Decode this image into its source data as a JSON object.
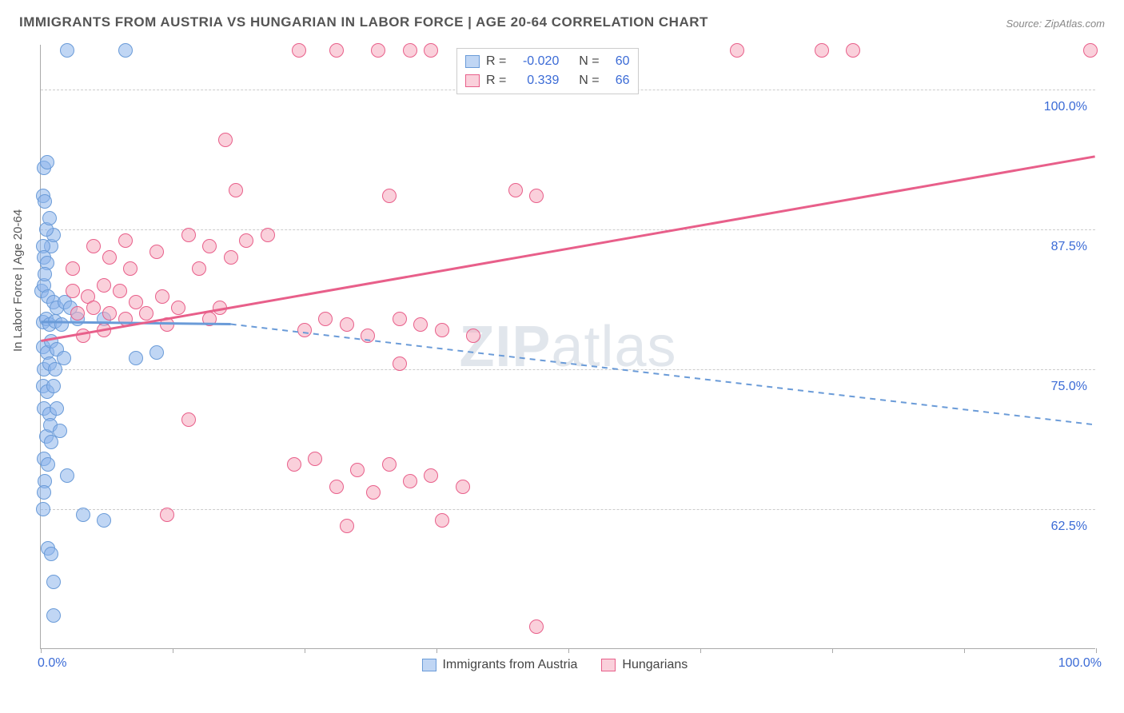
{
  "title": "IMMIGRANTS FROM AUSTRIA VS HUNGARIAN IN LABOR FORCE | AGE 20-64 CORRELATION CHART",
  "source": "Source: ZipAtlas.com",
  "watermark_bold": "ZIP",
  "watermark_rest": "atlas",
  "chart": {
    "type": "scatter",
    "xlim": [
      0,
      100
    ],
    "ylim": [
      50,
      104
    ],
    "ytick_values": [
      62.5,
      75.0,
      87.5,
      100.0
    ],
    "ytick_labels": [
      "62.5%",
      "75.0%",
      "87.5%",
      "100.0%"
    ],
    "xtick_positions": [
      0,
      12.5,
      25,
      37.5,
      50,
      62.5,
      75,
      87.5,
      100
    ],
    "xaxis_start_label": "0.0%",
    "xaxis_end_label": "100.0%",
    "ylabel": "In Labor Force | Age 20-64",
    "background_color": "#ffffff",
    "grid_color": "#cccccc",
    "series": [
      {
        "name": "Immigrants from Austria",
        "label": "Immigrants from Austria",
        "fill": "rgba(140,180,235,0.55)",
        "stroke": "#6a9bd8",
        "regression": {
          "x1": 0,
          "y1": 79.2,
          "x2": 18,
          "y2": 79.0,
          "x3": 100,
          "y3": 70.0,
          "solid_until": 18
        },
        "marker_radius": 9,
        "points": [
          [
            2.5,
            103.5
          ],
          [
            0.2,
            90.5
          ],
          [
            0.4,
            90.0
          ],
          [
            8.0,
            103.5
          ],
          [
            0.3,
            93.0
          ],
          [
            0.6,
            93.5
          ],
          [
            1.0,
            86.0
          ],
          [
            1.2,
            87.0
          ],
          [
            0.2,
            86.0
          ],
          [
            0.5,
            87.5
          ],
          [
            0.3,
            85.0
          ],
          [
            0.6,
            84.5
          ],
          [
            0.1,
            82.0
          ],
          [
            0.3,
            82.5
          ],
          [
            0.7,
            81.5
          ],
          [
            1.2,
            81.0
          ],
          [
            1.5,
            80.5
          ],
          [
            2.3,
            81.0
          ],
          [
            2.8,
            80.5
          ],
          [
            0.2,
            79.2
          ],
          [
            0.5,
            79.5
          ],
          [
            0.8,
            79.0
          ],
          [
            1.4,
            79.3
          ],
          [
            2.0,
            79.0
          ],
          [
            3.5,
            79.5
          ],
          [
            6.0,
            79.5
          ],
          [
            0.2,
            77.0
          ],
          [
            0.6,
            76.5
          ],
          [
            1.0,
            77.5
          ],
          [
            1.5,
            76.8
          ],
          [
            0.3,
            75.0
          ],
          [
            0.8,
            75.5
          ],
          [
            1.4,
            75.0
          ],
          [
            2.2,
            76.0
          ],
          [
            0.2,
            73.5
          ],
          [
            0.6,
            73.0
          ],
          [
            1.2,
            73.5
          ],
          [
            0.3,
            71.5
          ],
          [
            0.8,
            71.0
          ],
          [
            1.5,
            71.5
          ],
          [
            9.0,
            76.0
          ],
          [
            11.0,
            76.5
          ],
          [
            0.5,
            69.0
          ],
          [
            1.0,
            68.5
          ],
          [
            0.3,
            67.0
          ],
          [
            0.7,
            66.5
          ],
          [
            0.9,
            70.0
          ],
          [
            1.8,
            69.5
          ],
          [
            0.4,
            65.0
          ],
          [
            2.5,
            65.5
          ],
          [
            0.2,
            62.5
          ],
          [
            4.0,
            62.0
          ],
          [
            6.0,
            61.5
          ],
          [
            0.7,
            59.0
          ],
          [
            1.0,
            58.5
          ],
          [
            1.2,
            56.0
          ],
          [
            1.2,
            53.0
          ],
          [
            0.3,
            64.0
          ],
          [
            0.8,
            88.5
          ],
          [
            0.4,
            83.5
          ]
        ]
      },
      {
        "name": "Hungarians",
        "label": "Hungarians",
        "fill": "rgba(245,170,190,0.55)",
        "stroke": "#e85f8a",
        "regression": {
          "x1": 0,
          "y1": 77.5,
          "x2": 100,
          "y2": 94.0,
          "solid_until": 100
        },
        "marker_radius": 9,
        "points": [
          [
            24.5,
            103.5
          ],
          [
            28.0,
            103.5
          ],
          [
            32.0,
            103.5
          ],
          [
            35.0,
            103.5
          ],
          [
            37.0,
            103.5
          ],
          [
            66.0,
            103.5
          ],
          [
            74.0,
            103.5
          ],
          [
            77.0,
            103.5
          ],
          [
            99.5,
            103.5
          ],
          [
            17.5,
            95.5
          ],
          [
            45.0,
            91.0
          ],
          [
            18.5,
            91.0
          ],
          [
            33.0,
            90.5
          ],
          [
            47.0,
            90.5
          ],
          [
            5.0,
            86.0
          ],
          [
            6.5,
            85.0
          ],
          [
            8.0,
            86.5
          ],
          [
            11.0,
            85.5
          ],
          [
            14.0,
            87.0
          ],
          [
            16.0,
            86.0
          ],
          [
            18.0,
            85.0
          ],
          [
            19.5,
            86.5
          ],
          [
            21.5,
            87.0
          ],
          [
            15.0,
            84.0
          ],
          [
            3.0,
            82.0
          ],
          [
            4.5,
            81.5
          ],
          [
            6.0,
            82.5
          ],
          [
            7.5,
            82.0
          ],
          [
            9.0,
            81.0
          ],
          [
            11.5,
            81.5
          ],
          [
            3.5,
            80.0
          ],
          [
            5.0,
            80.5
          ],
          [
            6.5,
            80.0
          ],
          [
            8.0,
            79.5
          ],
          [
            10.0,
            80.0
          ],
          [
            13.0,
            80.5
          ],
          [
            17.0,
            80.5
          ],
          [
            4.0,
            78.0
          ],
          [
            6.0,
            78.5
          ],
          [
            12.0,
            79.0
          ],
          [
            16.0,
            79.5
          ],
          [
            25.0,
            78.5
          ],
          [
            27.0,
            79.5
          ],
          [
            29.0,
            79.0
          ],
          [
            31.0,
            78.0
          ],
          [
            34.0,
            79.5
          ],
          [
            36.0,
            79.0
          ],
          [
            38.0,
            78.5
          ],
          [
            41.0,
            78.0
          ],
          [
            34.0,
            75.5
          ],
          [
            14.0,
            70.5
          ],
          [
            24.0,
            66.5
          ],
          [
            26.0,
            67.0
          ],
          [
            28.0,
            64.5
          ],
          [
            30.0,
            66.0
          ],
          [
            31.5,
            64.0
          ],
          [
            33.0,
            66.5
          ],
          [
            35.0,
            65.0
          ],
          [
            37.0,
            65.5
          ],
          [
            40.0,
            64.5
          ],
          [
            12.0,
            62.0
          ],
          [
            29.0,
            61.0
          ],
          [
            38.0,
            61.5
          ],
          [
            47.0,
            52.0
          ],
          [
            3.0,
            84.0
          ],
          [
            8.5,
            84.0
          ]
        ]
      }
    ],
    "correlation_legend": {
      "rows": [
        {
          "swatch_fill": "rgba(140,180,235,0.55)",
          "swatch_stroke": "#6a9bd8",
          "r_label": "R =",
          "r": "-0.020",
          "n_label": "N =",
          "n": "60"
        },
        {
          "swatch_fill": "rgba(245,170,190,0.55)",
          "swatch_stroke": "#e85f8a",
          "r_label": "R =",
          "r": "0.339",
          "n_label": "N =",
          "n": "66"
        }
      ]
    }
  }
}
